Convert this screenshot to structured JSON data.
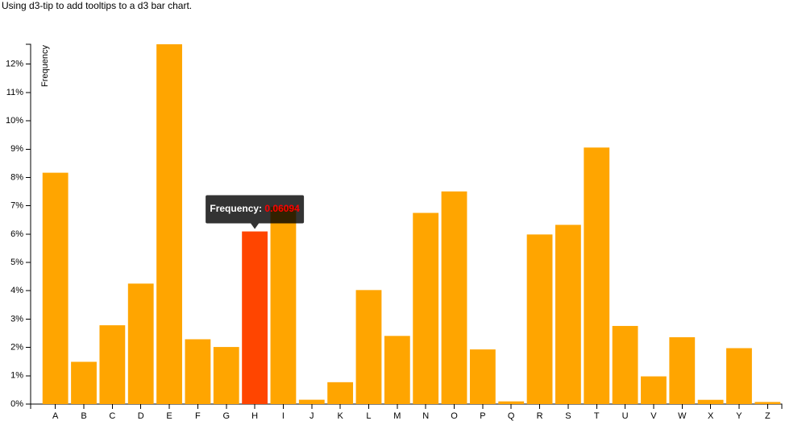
{
  "chart_data": {
    "type": "bar",
    "title": "Using d3-tip to add tooltips to a d3 bar chart.",
    "y_label": "Frequency",
    "categories": [
      "A",
      "B",
      "C",
      "D",
      "E",
      "F",
      "G",
      "H",
      "I",
      "J",
      "K",
      "L",
      "M",
      "N",
      "O",
      "P",
      "Q",
      "R",
      "S",
      "T",
      "U",
      "V",
      "W",
      "X",
      "Y",
      "Z"
    ],
    "values": [
      0.08167,
      0.01492,
      0.02782,
      0.04253,
      0.12702,
      0.02288,
      0.02015,
      0.06094,
      0.06966,
      0.00153,
      0.00772,
      0.04025,
      0.02406,
      0.06749,
      0.07507,
      0.01929,
      0.00095,
      0.05987,
      0.06327,
      0.09056,
      0.02758,
      0.00978,
      0.0236,
      0.0015,
      0.01974,
      0.00074
    ],
    "color": "orange",
    "ylim": [
      0,
      0.12702
    ],
    "yticks": [
      {
        "value": 0,
        "label": "0%"
      },
      {
        "value": 0.01,
        "label": "1%"
      },
      {
        "value": 0.02,
        "label": "2%"
      },
      {
        "value": 0.03,
        "label": "3%"
      },
      {
        "value": 0.04,
        "label": "4%"
      },
      {
        "value": 0.05,
        "label": "5%"
      },
      {
        "value": 0.06,
        "label": "6%"
      },
      {
        "value": 0.07,
        "label": "7%"
      },
      {
        "value": 0.08,
        "label": "8%"
      },
      {
        "value": 0.09,
        "label": "9%"
      },
      {
        "value": 0.1,
        "label": "10%"
      },
      {
        "value": 0.11,
        "label": "11%"
      },
      {
        "value": 0.12,
        "label": "12%"
      }
    ],
    "grid": false,
    "highlight": {
      "index": 7,
      "color": "orangered",
      "tooltip_label": "Frequency:",
      "value_color": "red"
    }
  }
}
